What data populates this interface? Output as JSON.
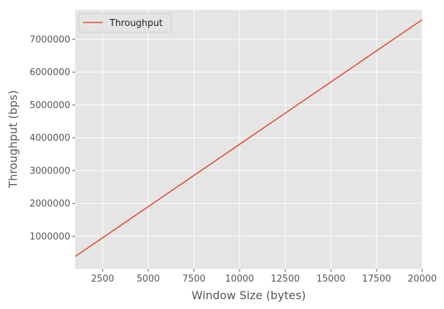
{
  "chart_data": {
    "type": "line",
    "xlabel": "Window Size (bytes)",
    "ylabel": "Throughput (bps)",
    "xlim": [
      1000,
      20000
    ],
    "ylim": [
      0,
      7900000
    ],
    "xticks": [
      2500,
      5000,
      7500,
      10000,
      12500,
      15000,
      17500,
      20000
    ],
    "xtick_labels": [
      "2500",
      "5000",
      "7500",
      "10000",
      "12500",
      "15000",
      "17500",
      "20000"
    ],
    "yticks": [
      1000000,
      2000000,
      3000000,
      4000000,
      5000000,
      6000000,
      7000000
    ],
    "ytick_labels": [
      "1000000",
      "2000000",
      "3000000",
      "4000000",
      "5000000",
      "6000000",
      "7000000"
    ],
    "grid": true,
    "legend_position": "top-left",
    "series": [
      {
        "name": "Throughput",
        "color": "#e24a33",
        "x": [
          1000,
          20000
        ],
        "y": [
          380000,
          7600000
        ]
      }
    ]
  }
}
